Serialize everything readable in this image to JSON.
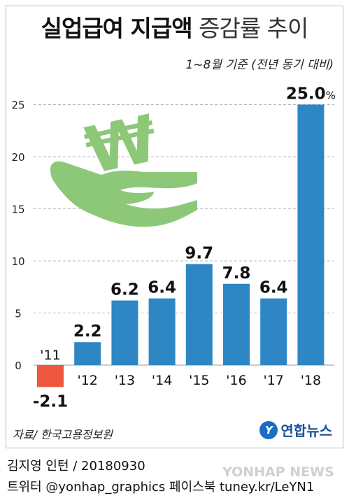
{
  "title_bold": "실업급여 지급액",
  "title_light": "증감률 추이",
  "subtitle": "1~8월 기준 (전년 동기 대비)",
  "source": "자료/ 한국고용정보원",
  "agency": "연합뉴스",
  "footer": {
    "line1": "김지영 인턴 / 20180930",
    "line2": "트위터 @yonhap_graphics  페이스북 tuney.kr/LeYN1"
  },
  "watermark": "YONHAP NEWS",
  "chart_data": {
    "type": "bar",
    "categories": [
      "'11",
      "'12",
      "'13",
      "'14",
      "'15",
      "'16",
      "'17",
      "'18"
    ],
    "values": [
      -2.1,
      2.2,
      6.2,
      6.4,
      9.7,
      7.8,
      6.4,
      25.0
    ],
    "value_labels": [
      "-2.1",
      "2.2",
      "6.2",
      "6.4",
      "9.7",
      "7.8",
      "6.4",
      "25.0"
    ],
    "last_value_suffix": "%",
    "yticks": [
      0,
      5,
      10,
      15,
      20,
      25
    ],
    "ylim": [
      -3,
      27
    ],
    "grid": true,
    "colors": {
      "positive": "#2f86c4",
      "negative": "#ef5840",
      "grid": "#b9b9b9",
      "illustration": "#8dc878"
    },
    "illustration": "hand-holding-won-icon"
  }
}
